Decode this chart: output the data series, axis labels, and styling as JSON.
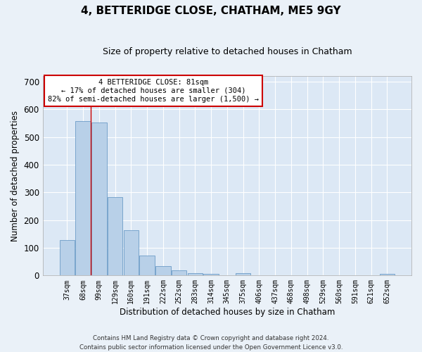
{
  "title": "4, BETTERIDGE CLOSE, CHATHAM, ME5 9GY",
  "subtitle": "Size of property relative to detached houses in Chatham",
  "xlabel": "Distribution of detached houses by size in Chatham",
  "ylabel": "Number of detached properties",
  "footer_line1": "Contains HM Land Registry data © Crown copyright and database right 2024.",
  "footer_line2": "Contains public sector information licensed under the Open Government Licence v3.0.",
  "categories": [
    "37sqm",
    "68sqm",
    "99sqm",
    "129sqm",
    "160sqm",
    "191sqm",
    "222sqm",
    "252sqm",
    "283sqm",
    "314sqm",
    "345sqm",
    "375sqm",
    "406sqm",
    "437sqm",
    "468sqm",
    "498sqm",
    "529sqm",
    "560sqm",
    "591sqm",
    "621sqm",
    "652sqm"
  ],
  "values": [
    128,
    557,
    553,
    283,
    163,
    72,
    35,
    18,
    8,
    5,
    0,
    8,
    0,
    0,
    0,
    0,
    0,
    0,
    0,
    0,
    5
  ],
  "bar_color": "#b8d0e8",
  "bar_edge_color": "#5a8fc0",
  "property_line_x": 1.5,
  "annotation_line1": "4 BETTERIDGE CLOSE: 81sqm",
  "annotation_line2": "← 17% of detached houses are smaller (304)",
  "annotation_line3": "82% of semi-detached houses are larger (1,500) →",
  "vline_color": "#cc0000",
  "ylim": [
    0,
    720
  ],
  "yticks": [
    0,
    100,
    200,
    300,
    400,
    500,
    600,
    700
  ],
  "bg_color": "#dce8f5",
  "grid_color": "#ffffff",
  "fig_bg_color": "#eaf1f8",
  "annotation_box_color": "#ffffff",
  "annotation_box_edge": "#cc0000",
  "title_fontsize": 11,
  "subtitle_fontsize": 9
}
